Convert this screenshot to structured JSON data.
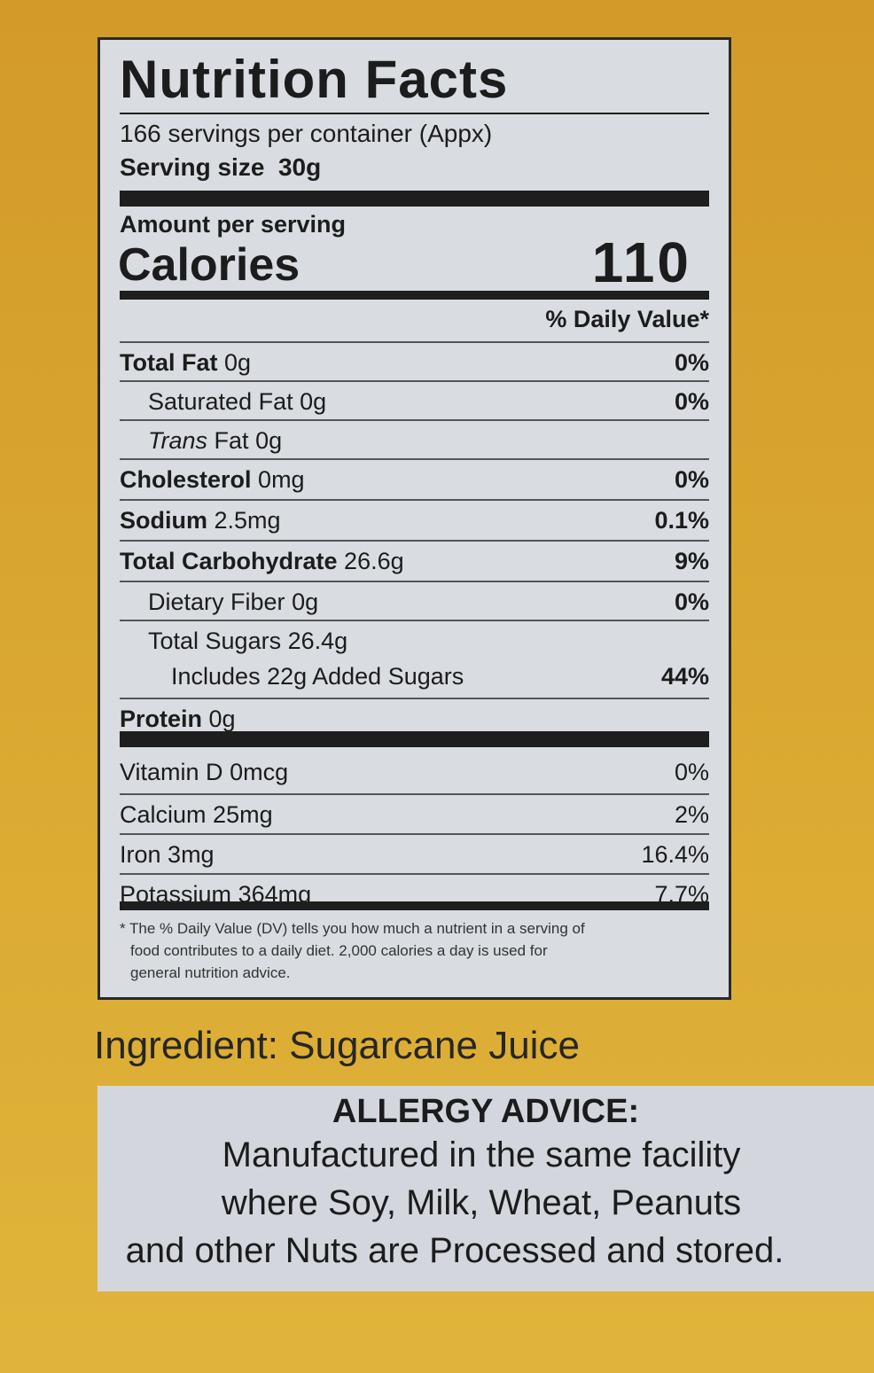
{
  "label": {
    "title": "Nutrition Facts",
    "servings": "166 servings per container (Appx)",
    "serving_size": {
      "label": "Serving size",
      "value": "30g"
    },
    "amount_per_serving": "Amount per serving",
    "calories": {
      "label": "Calories",
      "value": "110"
    },
    "dv_header": "% Daily Value*",
    "nutrients": [
      {
        "name": "Total Fat",
        "amount": "0g",
        "dv": "0%"
      },
      {
        "name": "Saturated Fat",
        "amount": "0g",
        "dv": "0%"
      },
      {
        "name_italic": "Trans",
        "name": "Fat",
        "amount": "0g"
      },
      {
        "name": "Cholesterol",
        "amount": "0mg",
        "dv": "0%"
      },
      {
        "name": "Sodium",
        "amount": "2.5mg",
        "dv": "0.1%"
      },
      {
        "name": "Total Carbohydrate",
        "amount": "26.6g",
        "dv": "9%"
      },
      {
        "name": "Dietary Fiber",
        "amount": "0g",
        "dv": "0%"
      },
      {
        "name": "Total Sugars",
        "amount": "26.4g"
      },
      {
        "name": "Includes 22g Added Sugars",
        "dv": "44%"
      },
      {
        "name": "Protein",
        "amount": "0g"
      }
    ],
    "vitamins": [
      {
        "name": "Vitamin D",
        "amount": "0mcg",
        "dv": "0%"
      },
      {
        "name": "Calcium",
        "amount": "25mg",
        "dv": "2%"
      },
      {
        "name": "Iron",
        "amount": "3mg",
        "dv": "16.4%"
      },
      {
        "name": "Potassium",
        "amount": "364mg",
        "dv": "7.7%"
      }
    ],
    "footnote": [
      "* The % Daily Value (DV) tells you how much a nutrient in a serving of",
      "food contributes to a daily diet. 2,000 calories a day is used for",
      "general nutrition advice."
    ]
  },
  "ingredient": "Ingredient: Sugarcane Juice",
  "allergy": {
    "title": "ALLERGY ADVICE:",
    "lines": [
      "Manufactured in the same facility",
      "where Soy, Milk, Wheat, Peanuts",
      "and other Nuts are Processed and stored."
    ]
  }
}
